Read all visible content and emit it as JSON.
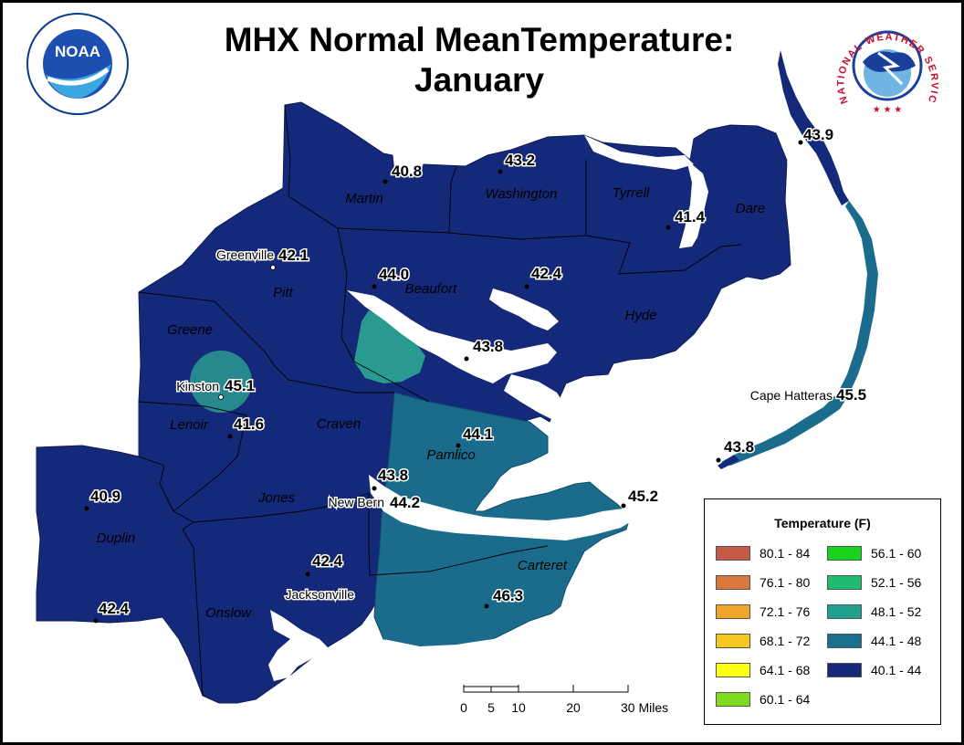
{
  "title": "MHX Normal MeanTemperature:",
  "subtitle": "January",
  "logos": {
    "noaa_text": "NOAA",
    "nws_text": "NATIONAL WEATHER SERVICE"
  },
  "legend": {
    "title": "Temperature (F)",
    "items": [
      {
        "label": "80.1 - 84",
        "color": "#c65a47"
      },
      {
        "label": "56.1 - 60",
        "color": "#19d41d"
      },
      {
        "label": "76.1 - 80",
        "color": "#d9773d"
      },
      {
        "label": "52.1 - 56",
        "color": "#1fbb6e"
      },
      {
        "label": "72.1 - 76",
        "color": "#eea52a"
      },
      {
        "label": "48.1 - 52",
        "color": "#20a08e"
      },
      {
        "label": "68.1 - 72",
        "color": "#f4c71c"
      },
      {
        "label": "44.1 - 48",
        "color": "#1b6f8e"
      },
      {
        "label": "64.1 - 68",
        "color": "#ffff12"
      },
      {
        "label": "40.1 - 44",
        "color": "#16287a"
      },
      {
        "label": "60.1 - 64",
        "color": "#7ddc1e"
      }
    ]
  },
  "colors": {
    "region_40_44": "#14297a",
    "region_44_48": "#1b6c8c",
    "region_48_52": "#2a9a90",
    "water": "#ffffff",
    "county_line": "#000000"
  },
  "counties": [
    "Martin",
    "Washington",
    "Tyrrell",
    "Dare",
    "Pitt",
    "Beaufort",
    "Hyde",
    "Greene",
    "Lenoir",
    "Craven",
    "Pamlico",
    "Jones",
    "Duplin",
    "Onslow",
    "Carteret"
  ],
  "cities": [
    "Greenville",
    "Kinston",
    "New Bern",
    "Jacksonville",
    "Cape Hatteras"
  ],
  "stations": [
    "40.8",
    "43.2",
    "43.9",
    "41.4",
    "42.1",
    "44.0",
    "42.4",
    "43.8",
    "45.1",
    "41.6",
    "44.1",
    "45.5",
    "43.8",
    "43.8",
    "44.2",
    "45.2",
    "40.9",
    "42.4",
    "46.3",
    "42.4"
  ],
  "scale_bar": {
    "labels": [
      "0",
      "5",
      "10",
      "20",
      "30 Miles"
    ]
  }
}
